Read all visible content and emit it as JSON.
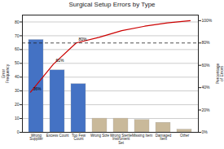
{
  "chart_data": {
    "type": "bar",
    "title": "Surgical Setup Errors by Type",
    "ylabel": "Error\nFrequency",
    "y2label": "Percentage\nof Errors",
    "categories": [
      "Wrong\nSupplier",
      "Excess Count",
      "Too Few\nCount",
      "Wrong Size",
      "Wrong Sterile\nInstrument\nSet",
      "Missing Item",
      "Damaged\nItem",
      "Other"
    ],
    "series": [
      {
        "type": "bar",
        "colors": [
          "#4472C4",
          "#4472C4",
          "#4472C4",
          "#C9B99A",
          "#C9B99A",
          "#C9B99A",
          "#C9B99A",
          "#C9B99A"
        ],
        "values": [
          67,
          45,
          35,
          10,
          10,
          9,
          7,
          2
        ]
      },
      {
        "type": "line",
        "axis": "y2",
        "color": "#CC0000",
        "values": [
          36,
          61,
          80,
          85,
          91,
          95,
          98,
          100
        ]
      }
    ],
    "hlines": [
      {
        "y": 80,
        "axis": "y2",
        "color": "#222222",
        "line_style": "dashed"
      }
    ],
    "annotations": [
      {
        "text": "36%",
        "x": "Wrong\nSupplier",
        "y": 36,
        "axis": "y2"
      },
      {
        "text": "61%",
        "x": "Excess Count",
        "y": 61,
        "axis": "y2"
      },
      {
        "text": "80%",
        "x": "Too Few\nCount",
        "y": 80,
        "axis": "y2"
      }
    ],
    "ylim": [
      0,
      85
    ],
    "yticks": [
      0,
      10,
      20,
      30,
      40,
      50,
      60,
      70,
      80
    ],
    "y2lim": [
      0,
      105
    ],
    "y2ticks": [
      {
        "value": 0,
        "label": "0%"
      },
      {
        "value": 20,
        "label": "20%"
      },
      {
        "value": 40,
        "label": "40%"
      },
      {
        "value": 60,
        "label": "60%"
      },
      {
        "value": 80,
        "label": "80%"
      },
      {
        "value": 100,
        "label": "100%"
      }
    ],
    "grid": true
  }
}
